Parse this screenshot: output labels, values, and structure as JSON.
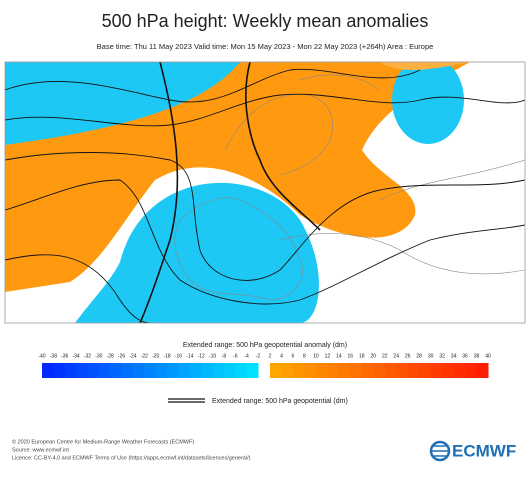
{
  "title": "500 hPa height: Weekly mean anomalies",
  "subtitle": "Base time: Thu 11 May 2023 Valid time: Mon 15 May 2023 - Mon 22 May 2023 (+264h) Area : Europe",
  "colorbar": {
    "label": "Extended range: 500 hPa geopotential anomaly (dm)",
    "ticks": [
      -40,
      -38,
      -36,
      -34,
      -32,
      -30,
      -28,
      -26,
      -24,
      -22,
      -20,
      -18,
      -16,
      -14,
      -12,
      -10,
      -8,
      -6,
      -4,
      -2,
      2,
      4,
      6,
      8,
      10,
      12,
      14,
      16,
      18,
      20,
      22,
      24,
      26,
      28,
      30,
      32,
      34,
      36,
      38,
      40
    ]
  },
  "legend": {
    "label": "Extended range: 500 hPa geopotential (dm)"
  },
  "footer": {
    "lines": [
      "© 2020 European Centre for Medium-Range Weather Forecasts (ECMWF)",
      "Source: www.ecmwf.int",
      "Licence: CC-BY-4.0 and ECMWF Terms of Use (https://apps.ecmwf.int/datasets/licences/general/)"
    ]
  },
  "logo": "ECMWF"
}
